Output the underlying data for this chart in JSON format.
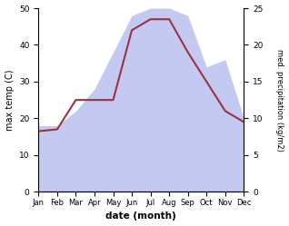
{
  "months": [
    "Jan",
    "Feb",
    "Mar",
    "Apr",
    "May",
    "Jun",
    "Jul",
    "Aug",
    "Sep",
    "Oct",
    "Nov",
    "Dec"
  ],
  "temp_line": [
    16.5,
    17,
    25,
    25,
    25,
    44,
    47,
    47,
    38,
    30,
    22,
    19
  ],
  "precip_vals": [
    9,
    9,
    11,
    14,
    19,
    24,
    25,
    25,
    24,
    17,
    18,
    10
  ],
  "temp_color": "#993344",
  "fill_color": "#b0b8ee",
  "fill_alpha": 0.75,
  "ylabel_left": "max temp (C)",
  "ylabel_right": "med. precipitation (kg/m2)",
  "xlabel": "date (month)",
  "ylim_left": [
    0,
    50
  ],
  "ylim_right": [
    0,
    25
  ],
  "bg_color": "#ffffff",
  "line_width": 1.5
}
